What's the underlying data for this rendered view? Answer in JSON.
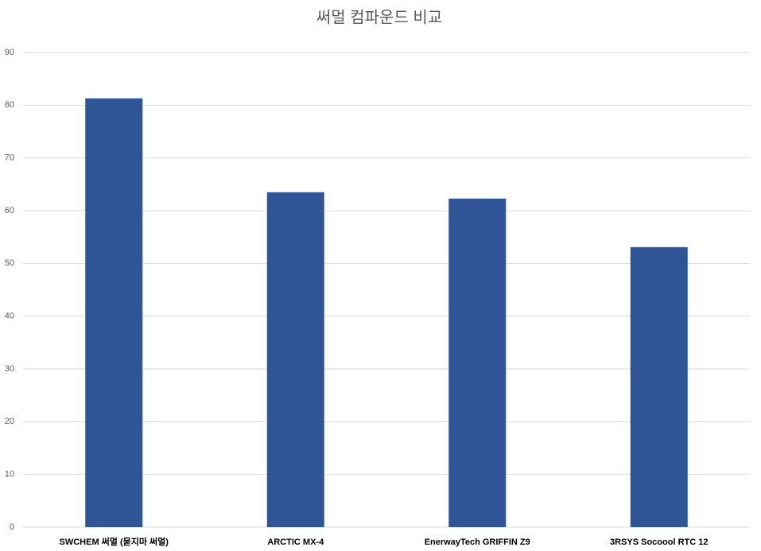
{
  "chart_data": {
    "type": "bar",
    "title": "써멀 컴파운드 비교",
    "categories": [
      "SWCHEM 써멀 (묻지마 써멀)",
      "ARCTIC MX-4",
      "EnerwayTech GRIFFIN Z9",
      "3RSYS Socoool RTC 12"
    ],
    "values": [
      81.3,
      63.5,
      62.3,
      53.1
    ],
    "color": "#2f5597",
    "ylim": [
      0,
      90
    ],
    "yticks": [
      0,
      10,
      20,
      30,
      40,
      50,
      60,
      70,
      80,
      90
    ],
    "grid": true
  }
}
